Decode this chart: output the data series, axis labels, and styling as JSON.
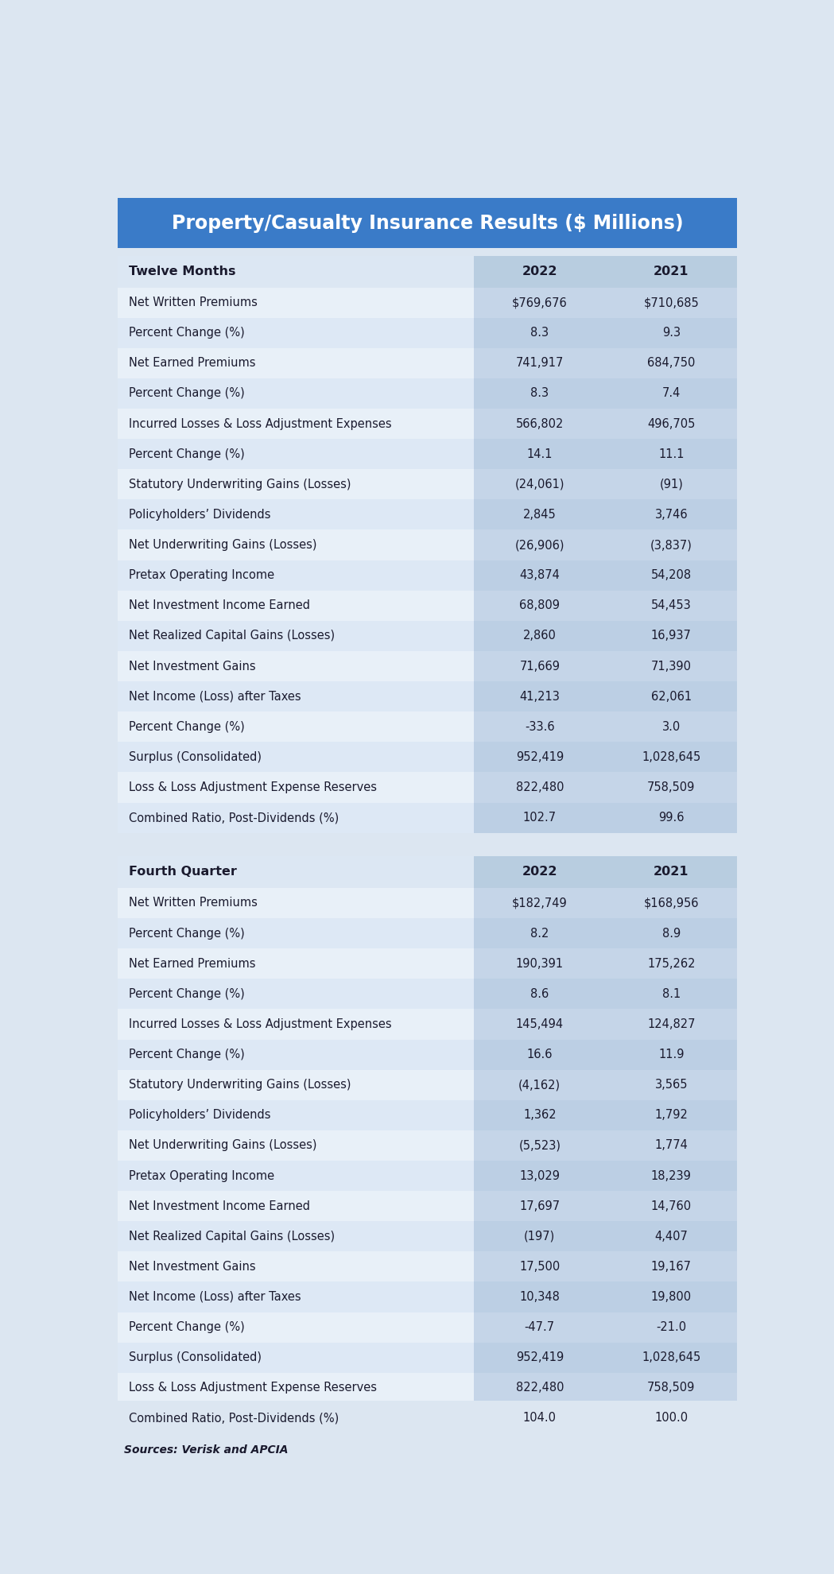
{
  "title": "Property/Casualty Insurance Results ($ Millions)",
  "title_bg": "#3d7cc9",
  "title_color": "#ffffff",
  "section1_header": "Twelve Months",
  "section2_header": "Fourth Quarter",
  "col_headers": [
    "2022",
    "2021"
  ],
  "section1_rows": [
    [
      "Net Written Premiums",
      "$769,676",
      "$710,685"
    ],
    [
      "Percent Change (%)",
      "8.3",
      "9.3"
    ],
    [
      "Net Earned Premiums",
      "741,917",
      "684,750"
    ],
    [
      "Percent Change (%)",
      "8.3",
      "7.4"
    ],
    [
      "Incurred Losses & Loss Adjustment Expenses",
      "566,802",
      "496,705"
    ],
    [
      "Percent Change (%)",
      "14.1",
      "11.1"
    ],
    [
      "Statutory Underwriting Gains (Losses)",
      "(24,061)",
      "(91)"
    ],
    [
      "Policyholders’ Dividends",
      "2,845",
      "3,746"
    ],
    [
      "Net Underwriting Gains (Losses)",
      "(26,906)",
      "(3,837)"
    ],
    [
      "Pretax Operating Income",
      "43,874",
      "54,208"
    ],
    [
      "Net Investment Income Earned",
      "68,809",
      "54,453"
    ],
    [
      "Net Realized Capital Gains (Losses)",
      "2,860",
      "16,937"
    ],
    [
      "Net Investment Gains",
      "71,669",
      "71,390"
    ],
    [
      "Net Income (Loss) after Taxes",
      "41,213",
      "62,061"
    ],
    [
      "Percent Change (%)",
      "-33.6",
      "3.0"
    ],
    [
      "Surplus (Consolidated)",
      "952,419",
      "1,028,645"
    ],
    [
      "Loss & Loss Adjustment Expense Reserves",
      "822,480",
      "758,509"
    ],
    [
      "Combined Ratio, Post-Dividends (%)",
      "102.7",
      "99.6"
    ]
  ],
  "section2_rows": [
    [
      "Net Written Premiums",
      "$182,749",
      "$168,956"
    ],
    [
      "Percent Change (%)",
      "8.2",
      "8.9"
    ],
    [
      "Net Earned Premiums",
      "190,391",
      "175,262"
    ],
    [
      "Percent Change (%)",
      "8.6",
      "8.1"
    ],
    [
      "Incurred Losses & Loss Adjustment Expenses",
      "145,494",
      "124,827"
    ],
    [
      "Percent Change (%)",
      "16.6",
      "11.9"
    ],
    [
      "Statutory Underwriting Gains (Losses)",
      "(4,162)",
      "3,565"
    ],
    [
      "Policyholders’ Dividends",
      "1,362",
      "1,792"
    ],
    [
      "Net Underwriting Gains (Losses)",
      "(5,523)",
      "1,774"
    ],
    [
      "Pretax Operating Income",
      "13,029",
      "18,239"
    ],
    [
      "Net Investment Income Earned",
      "17,697",
      "14,760"
    ],
    [
      "Net Realized Capital Gains (Losses)",
      "(197)",
      "4,407"
    ],
    [
      "Net Investment Gains",
      "17,500",
      "19,167"
    ],
    [
      "Net Income (Loss) after Taxes",
      "10,348",
      "19,800"
    ],
    [
      "Percent Change (%)",
      "-47.7",
      "-21.0"
    ],
    [
      "Surplus (Consolidated)",
      "952,419",
      "1,028,645"
    ],
    [
      "Loss & Loss Adjustment Expense Reserves",
      "822,480",
      "758,509"
    ],
    [
      "Combined Ratio, Post-Dividends (%)",
      "104.0",
      "100.0"
    ]
  ],
  "source_text": "Sources: Verisk and APCIA",
  "bg_color": "#dce6f1",
  "left_col_bg": "#e8f0f8",
  "right_col_bg": "#c5d5e8",
  "header_left_bg": "#dce7f3",
  "header_right_bg": "#b8cde0",
  "title_bg_color": "#3a7bc8",
  "text_color": "#1a1a2e",
  "gap_color": "#dce6f1",
  "col_split": 0.575
}
